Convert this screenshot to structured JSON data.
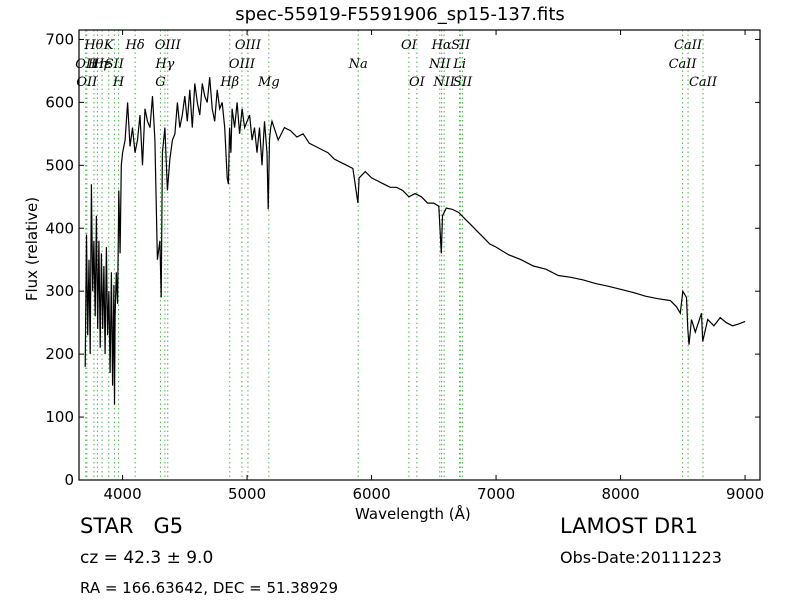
{
  "title": "spec-55919-F5591906_sp15-137.fits",
  "object_class": "STAR",
  "object_subclass": "G5",
  "survey": "LAMOST DR1",
  "redshift_text": "cz = 42.3  ± 9.0",
  "obs_date": "Obs-Date:20111223",
  "radec": "RA = 166.63642, DEC = 51.38929",
  "chart_data": {
    "type": "line",
    "xlabel": "Wavelength (Å)",
    "ylabel": "Flux (relative)",
    "xlim": [
      3650,
      9120
    ],
    "ylim": [
      0,
      715
    ],
    "xticks": [
      4000,
      5000,
      6000,
      7000,
      8000,
      9000
    ],
    "yticks": [
      0,
      100,
      200,
      300,
      400,
      500,
      600,
      700
    ],
    "line_color": "#000000",
    "marker_color": "#4db34d",
    "spectrum": {
      "x": [
        3700,
        3710,
        3720,
        3730,
        3740,
        3750,
        3760,
        3770,
        3780,
        3790,
        3800,
        3810,
        3820,
        3830,
        3840,
        3850,
        3860,
        3870,
        3880,
        3890,
        3900,
        3910,
        3920,
        3930,
        3935,
        3940,
        3950,
        3960,
        3970,
        3980,
        3990,
        4000,
        4020,
        4040,
        4060,
        4080,
        4100,
        4120,
        4140,
        4160,
        4180,
        4200,
        4220,
        4240,
        4260,
        4280,
        4300,
        4310,
        4320,
        4340,
        4360,
        4380,
        4400,
        4420,
        4440,
        4460,
        4480,
        4500,
        4520,
        4540,
        4560,
        4580,
        4600,
        4620,
        4640,
        4660,
        4680,
        4700,
        4720,
        4740,
        4760,
        4780,
        4800,
        4820,
        4840,
        4850,
        4860,
        4870,
        4880,
        4900,
        4920,
        4940,
        4960,
        4980,
        5000,
        5020,
        5040,
        5060,
        5080,
        5100,
        5120,
        5140,
        5160,
        5170,
        5180,
        5190,
        5200,
        5250,
        5300,
        5350,
        5400,
        5450,
        5500,
        5550,
        5600,
        5650,
        5700,
        5750,
        5800,
        5850,
        5890,
        5900,
        5950,
        6000,
        6050,
        6100,
        6150,
        6200,
        6250,
        6300,
        6350,
        6400,
        6450,
        6500,
        6540,
        6560,
        6570,
        6600,
        6650,
        6700,
        6750,
        6800,
        6850,
        6900,
        6950,
        7000,
        7100,
        7200,
        7300,
        7400,
        7500,
        7600,
        7700,
        7800,
        7900,
        8000,
        8100,
        8200,
        8300,
        8400,
        8450,
        8480,
        8500,
        8530,
        8540,
        8550,
        8570,
        8600,
        8650,
        8660,
        8700,
        8750,
        8800,
        8850,
        8900,
        8950,
        9000
      ],
      "y": [
        180,
        390,
        230,
        350,
        200,
        470,
        300,
        380,
        260,
        420,
        240,
        380,
        210,
        360,
        240,
        340,
        200,
        370,
        230,
        300,
        170,
        330,
        150,
        310,
        120,
        260,
        330,
        280,
        460,
        360,
        500,
        520,
        540,
        600,
        530,
        560,
        520,
        540,
        580,
        500,
        590,
        570,
        560,
        610,
        540,
        350,
        380,
        290,
        520,
        560,
        460,
        510,
        540,
        550,
        600,
        560,
        580,
        610,
        570,
        620,
        560,
        630,
        600,
        580,
        630,
        610,
        600,
        640,
        590,
        570,
        620,
        590,
        600,
        560,
        480,
        470,
        560,
        520,
        590,
        560,
        600,
        550,
        590,
        560,
        570,
        580,
        540,
        560,
        520,
        560,
        500,
        570,
        520,
        430,
        540,
        560,
        570,
        540,
        560,
        555,
        545,
        550,
        535,
        530,
        525,
        520,
        510,
        505,
        500,
        495,
        440,
        480,
        490,
        480,
        475,
        470,
        465,
        465,
        460,
        450,
        455,
        450,
        440,
        440,
        435,
        360,
        420,
        432,
        430,
        425,
        415,
        405,
        395,
        385,
        375,
        370,
        358,
        350,
        340,
        335,
        325,
        322,
        318,
        312,
        308,
        303,
        298,
        292,
        288,
        285,
        275,
        265,
        300,
        290,
        240,
        215,
        255,
        235,
        265,
        220,
        255,
        245,
        258,
        250,
        245,
        248,
        252
      ]
    },
    "line_markers": [
      {
        "x": 3704,
        "label": "OII",
        "row": 1
      },
      {
        "x": 3713,
        "label": "OII",
        "row": 2
      },
      {
        "x": 3770,
        "label": "Hθ",
        "row": 0
      },
      {
        "x": 3798,
        "label": "Hη",
        "row": 1
      },
      {
        "x": 3835,
        "label": "Hε",
        "row": 1
      },
      {
        "x": 3889,
        "label": "K",
        "row": 0
      },
      {
        "x": 3934,
        "label": "SII",
        "row": 1
      },
      {
        "x": 3968,
        "label": "H",
        "row": 2
      },
      {
        "x": 4101,
        "label": "Hδ",
        "row": 0
      },
      {
        "x": 4304,
        "label": "G",
        "row": 2
      },
      {
        "x": 4340,
        "label": "Hγ",
        "row": 1
      },
      {
        "x": 4363,
        "label": "OIII",
        "row": 0
      },
      {
        "x": 4861,
        "label": "Hβ",
        "row": 2
      },
      {
        "x": 4959,
        "label": "OIII",
        "row": 1
      },
      {
        "x": 5007,
        "label": "OIII",
        "row": 0
      },
      {
        "x": 5175,
        "label": "Mg",
        "row": 2
      },
      {
        "x": 5893,
        "label": "Na",
        "row": 1
      },
      {
        "x": 6300,
        "label": "OI",
        "row": 0
      },
      {
        "x": 6364,
        "label": "OI",
        "row": 2
      },
      {
        "x": 6548,
        "label": "NII",
        "row": 1
      },
      {
        "x": 6563,
        "label": "Hα",
        "row": 0
      },
      {
        "x": 6583,
        "label": "NII",
        "row": 2
      },
      {
        "x": 6707,
        "label": "Li",
        "row": 1
      },
      {
        "x": 6716,
        "label": "SII",
        "row": 0
      },
      {
        "x": 6731,
        "label": "SII",
        "row": 2
      },
      {
        "x": 8498,
        "label": "CaII",
        "row": 1
      },
      {
        "x": 8542,
        "label": "CaII",
        "row": 0
      },
      {
        "x": 8662,
        "label": "CaII",
        "row": 2
      }
    ]
  }
}
